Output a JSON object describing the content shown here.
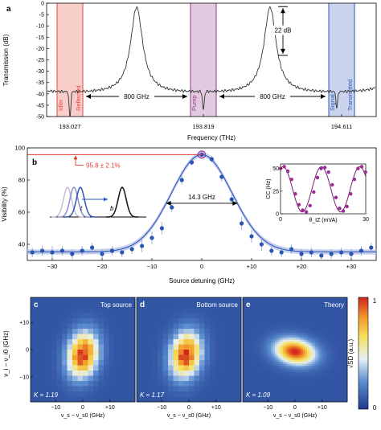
{
  "colors": {
    "idler": "#e8453c",
    "idler_band": "#f2a6a0",
    "pump": "#8e3a8c",
    "pump_band": "#caa0c8",
    "signal": "#2f56b8",
    "signal_band": "#9fb0de",
    "data_dot": "#2a55b5",
    "fit_band": "#b9c6ea",
    "annotation": "#e03b32",
    "inset_line": "#7a1e74",
    "inset_dot": "#9b2c94"
  },
  "chart_data": [
    {
      "panel": "a",
      "type": "line",
      "ylabel": "Transmission (dB)",
      "xlabel": "Frequency (THz)",
      "ylim": [
        -50,
        0
      ],
      "yticks": [
        "0",
        "-5",
        "-10",
        "-15",
        "-20",
        "-25",
        "-30",
        "-35",
        "-40",
        "-45",
        "-50"
      ],
      "yticks_values": [
        0,
        -5,
        -10,
        -15,
        -20,
        -25,
        -30,
        -35,
        -40,
        -45,
        -50
      ],
      "xticks": [
        "193.027",
        "193.819",
        "194.611"
      ],
      "resonances": [
        {
          "x": 0.0,
          "peak": -2,
          "dip": -51
        },
        {
          "x": 1.0,
          "peak": -2,
          "dip": -48
        },
        {
          "x": 2.0,
          "peak": -2,
          "dip": -47
        }
      ],
      "bands": [
        {
          "label": "Idler",
          "label2": "Reflected",
          "color_key": "idler"
        },
        {
          "label": "Pump",
          "label2": "",
          "color_key": "pump"
        },
        {
          "label": "Signal",
          "label2": "Transmitted",
          "color_key": "signal"
        }
      ],
      "spacing_labels": [
        "800 GHz",
        "800 GHz"
      ],
      "extinction_label": "22 dB"
    },
    {
      "panel": "b",
      "type": "scatter",
      "ylabel": "Visibility (%)",
      "xlabel": "Source detuning (GHz)",
      "ylim": [
        30,
        100
      ],
      "xlim": [
        -35,
        35
      ],
      "xticks": [
        "−30",
        "−20",
        "−10",
        "0",
        "+10",
        "+20",
        "+30"
      ],
      "xticks_values": [
        -30,
        -20,
        -10,
        0,
        10,
        20,
        30
      ],
      "yticks": [
        "40",
        "60",
        "80",
        "100"
      ],
      "yticks_values": [
        40,
        60,
        80,
        100
      ],
      "peak_label": "95.8 ± 2.1%",
      "width_label": "14.3 GHz",
      "fit": {
        "amplitude": 60.5,
        "offset": 35.3,
        "fwhm": 14.3
      },
      "points": [
        {
          "x": -34,
          "y": 35,
          "err": 3
        },
        {
          "x": -32,
          "y": 36,
          "err": 3
        },
        {
          "x": -30,
          "y": 35,
          "err": 4
        },
        {
          "x": -28,
          "y": 36,
          "err": 3
        },
        {
          "x": -26,
          "y": 34,
          "err": 3
        },
        {
          "x": -24,
          "y": 36,
          "err": 3
        },
        {
          "x": -22,
          "y": 38,
          "err": 3
        },
        {
          "x": -20,
          "y": 34,
          "err": 3
        },
        {
          "x": -18,
          "y": 36,
          "err": 3
        },
        {
          "x": -16,
          "y": 35,
          "err": 3
        },
        {
          "x": -14,
          "y": 37,
          "err": 3
        },
        {
          "x": -12,
          "y": 39,
          "err": 4
        },
        {
          "x": -10,
          "y": 44,
          "err": 4
        },
        {
          "x": -8,
          "y": 50,
          "err": 4
        },
        {
          "x": -6,
          "y": 63,
          "err": 3
        },
        {
          "x": -4,
          "y": 80,
          "err": 3
        },
        {
          "x": -2,
          "y": 91,
          "err": 2
        },
        {
          "x": 0,
          "y": 95.8,
          "err": 2.1
        },
        {
          "x": 2,
          "y": 93,
          "err": 2
        },
        {
          "x": 4,
          "y": 82,
          "err": 3
        },
        {
          "x": 6,
          "y": 68,
          "err": 3
        },
        {
          "x": 8,
          "y": 53,
          "err": 4
        },
        {
          "x": 10,
          "y": 45,
          "err": 4
        },
        {
          "x": 12,
          "y": 40,
          "err": 4
        },
        {
          "x": 14,
          "y": 36,
          "err": 3
        },
        {
          "x": 16,
          "y": 35,
          "err": 3
        },
        {
          "x": 18,
          "y": 37,
          "err": 3
        },
        {
          "x": 20,
          "y": 34,
          "err": 3
        },
        {
          "x": 22,
          "y": 35,
          "err": 3
        },
        {
          "x": 24,
          "y": 33,
          "err": 3
        },
        {
          "x": 26,
          "y": 34,
          "err": 3
        },
        {
          "x": 28,
          "y": 35,
          "err": 3
        },
        {
          "x": 30,
          "y": 34,
          "err": 3
        },
        {
          "x": 32,
          "y": 36,
          "err": 3
        },
        {
          "x": 34,
          "y": 38,
          "err": 3
        }
      ],
      "pulse_labels": [
        "t",
        "b"
      ],
      "inset": {
        "type": "line",
        "ylabel": "CC (Hz)",
        "xlabel": "θ_IZ (mVA)",
        "xticks": [
          "0",
          "30"
        ],
        "yticks": [
          "0",
          "25",
          "50"
        ],
        "yticks_values": [
          0,
          25,
          50
        ],
        "xlim": [
          0,
          30
        ],
        "ylim": [
          0,
          55
        ],
        "points": [
          {
            "x": 0,
            "y": 50
          },
          {
            "x": 1.3,
            "y": 52
          },
          {
            "x": 2.6,
            "y": 47
          },
          {
            "x": 3.9,
            "y": 38
          },
          {
            "x": 5.2,
            "y": 22
          },
          {
            "x": 6.5,
            "y": 10
          },
          {
            "x": 7.8,
            "y": 4
          },
          {
            "x": 9.1,
            "y": 2
          },
          {
            "x": 10.4,
            "y": 9
          },
          {
            "x": 11.7,
            "y": 24
          },
          {
            "x": 13.0,
            "y": 40
          },
          {
            "x": 14.3,
            "y": 50
          },
          {
            "x": 15.6,
            "y": 51
          },
          {
            "x": 16.9,
            "y": 46
          },
          {
            "x": 18.2,
            "y": 32
          },
          {
            "x": 19.5,
            "y": 18
          },
          {
            "x": 20.8,
            "y": 6
          },
          {
            "x": 22.1,
            "y": 3
          },
          {
            "x": 23.4,
            "y": 8
          },
          {
            "x": 24.7,
            "y": 22
          },
          {
            "x": 26.0,
            "y": 38
          },
          {
            "x": 27.3,
            "y": 50
          },
          {
            "x": 28.6,
            "y": 52
          },
          {
            "x": 29.9,
            "y": 46
          }
        ]
      }
    },
    {
      "panel": "c-e",
      "type": "heatmap",
      "ylabel": "ν_i − ν_i0 (GHz)",
      "xlabel": "ν_s − ν_s0 (GHz)",
      "xticks": [
        "−10",
        "0",
        "+10"
      ],
      "yticks": [
        "+10",
        "0",
        "−10"
      ],
      "colorbar_label": "√SD (a.u.)",
      "colorbar_ticks": [
        "1",
        "0"
      ],
      "maps": [
        {
          "panel": "c",
          "title": "Top source",
          "k_label": "K = 1.19",
          "pixelated": true,
          "center": [
            0.5,
            0.55
          ],
          "spread": [
            0.2,
            0.3
          ],
          "tilt": 0.1
        },
        {
          "panel": "d",
          "title": "Bottom source",
          "k_label": "K = 1.17",
          "pixelated": true,
          "center": [
            0.47,
            0.55
          ],
          "spread": [
            0.2,
            0.3
          ],
          "tilt": 0.1
        },
        {
          "panel": "e",
          "title": "Theory",
          "k_label": "K = 1.09",
          "pixelated": false,
          "center": [
            0.5,
            0.52
          ],
          "spread": [
            0.26,
            0.17
          ],
          "tilt": -0.3
        }
      ]
    }
  ]
}
